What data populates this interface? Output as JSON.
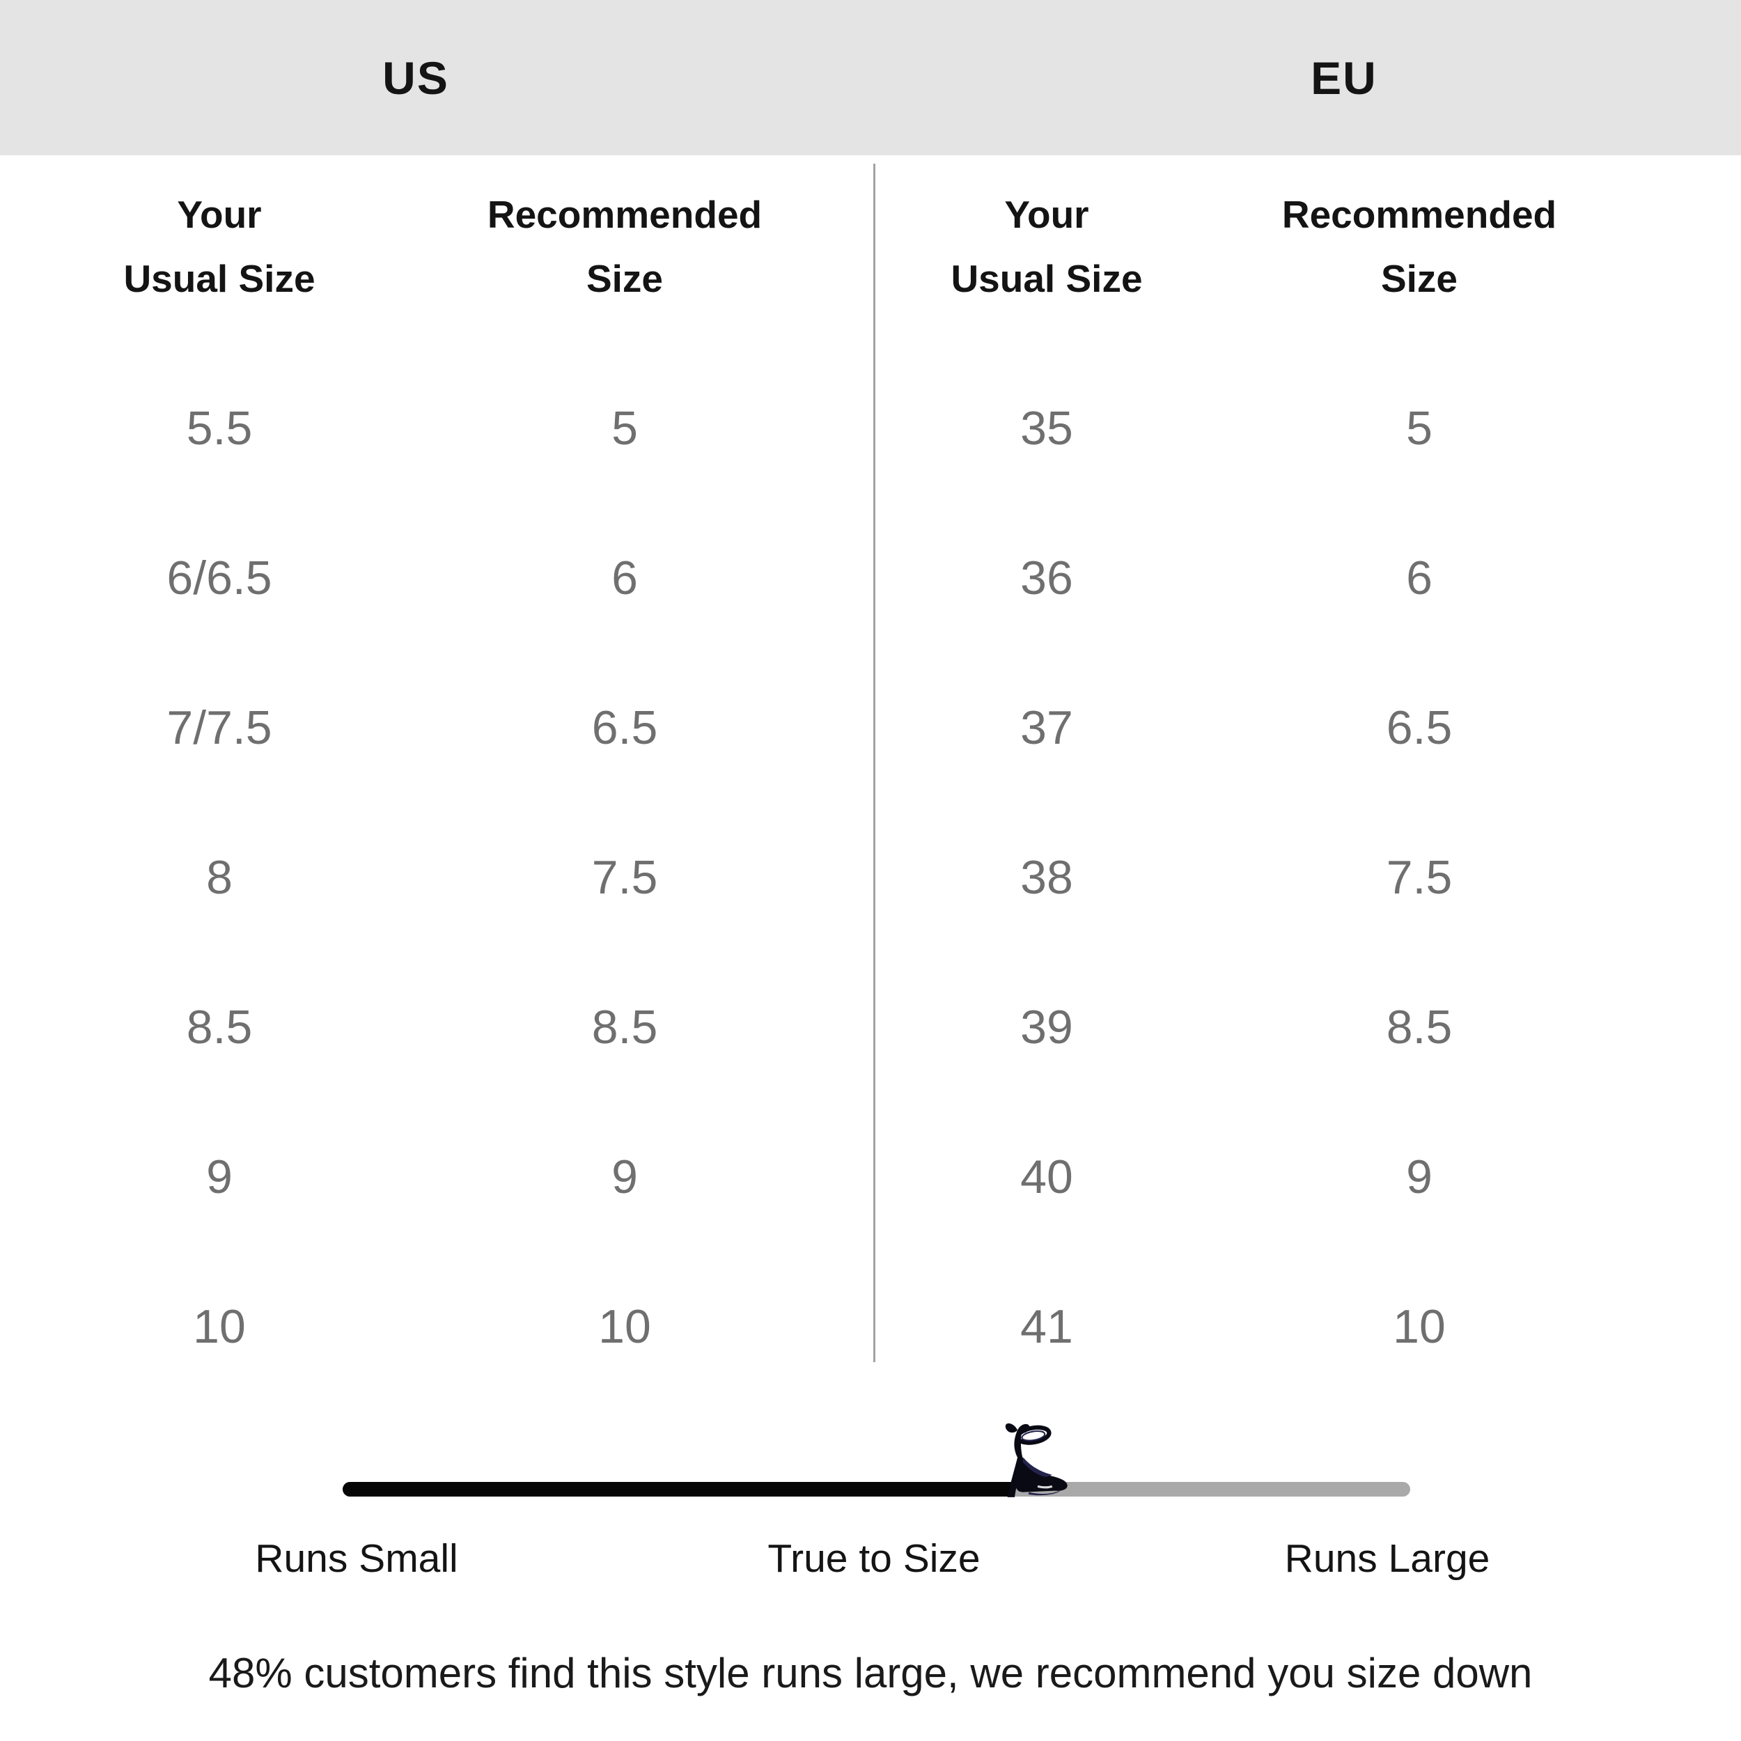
{
  "header": {
    "us": "US",
    "eu": "EU",
    "background": "#e4e4e4"
  },
  "columns": {
    "usual_line1": "Your",
    "usual_line2": "Usual Size",
    "recommended_line1": "Recommended",
    "recommended_line2": "Size"
  },
  "us_rows": [
    {
      "usual": "5.5",
      "recommended": "5"
    },
    {
      "usual": "6/6.5",
      "recommended": "6"
    },
    {
      "usual": "7/7.5",
      "recommended": "6.5"
    },
    {
      "usual": "8",
      "recommended": "7.5"
    },
    {
      "usual": "8.5",
      "recommended": "8.5"
    },
    {
      "usual": "9",
      "recommended": "9"
    },
    {
      "usual": "10",
      "recommended": "10"
    }
  ],
  "eu_rows": [
    {
      "usual": "35",
      "recommended": "5"
    },
    {
      "usual": "36",
      "recommended": "6"
    },
    {
      "usual": "37",
      "recommended": "6.5"
    },
    {
      "usual": "38",
      "recommended": "7.5"
    },
    {
      "usual": "39",
      "recommended": "8.5"
    },
    {
      "usual": "40",
      "recommended": "9"
    },
    {
      "usual": "41",
      "recommended": "10"
    }
  ],
  "fit_slider": {
    "labels": {
      "small": "Runs Small",
      "true_to_size": "True to Size",
      "large": "Runs Large"
    },
    "fill_percent": 62.6,
    "indicator_icon": "high-heel-shoe-icon",
    "filled_color": "#060606",
    "track_color": "#a9a9a9"
  },
  "note": "48% customers find this style runs large, we recommend you size down",
  "colors": {
    "heading_text": "#141414",
    "value_text": "#6f6f6f",
    "divider": "#a3a3a3",
    "note_text": "#1a1a1a",
    "shoe_black": "#0a0a14",
    "shoe_navy": "#23234d"
  }
}
